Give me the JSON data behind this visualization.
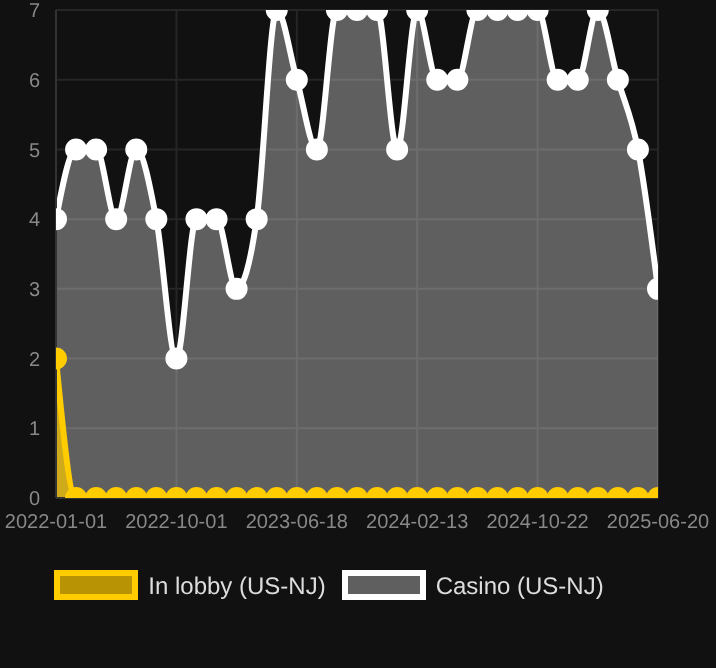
{
  "chart_data": {
    "type": "area",
    "categories": [
      "2022-01-01",
      null,
      null,
      null,
      null,
      null,
      "2022-10-01",
      null,
      null,
      null,
      null,
      null,
      "2023-06-18",
      null,
      null,
      null,
      null,
      null,
      "2024-02-13",
      null,
      null,
      null,
      null,
      null,
      "2024-10-22",
      null,
      null,
      null,
      null,
      null,
      "2025-06-20"
    ],
    "series": [
      {
        "name": "In lobby (US-NJ)",
        "color": "#ffcc00",
        "values": [
          2,
          0,
          0,
          0,
          0,
          0,
          0,
          0,
          0,
          0,
          0,
          0,
          0,
          0,
          0,
          0,
          0,
          0,
          0,
          0,
          0,
          0,
          0,
          0,
          0,
          0,
          0,
          0,
          0,
          0,
          0
        ]
      },
      {
        "name": "Casino (US-NJ)",
        "color": "#ffffff",
        "values": [
          4,
          5,
          5,
          4,
          5,
          4,
          2,
          4,
          4,
          3,
          4,
          7,
          6,
          5,
          7,
          7,
          7,
          5,
          7,
          6,
          6,
          7,
          7,
          7,
          7,
          6,
          6,
          7,
          6,
          5,
          3
        ]
      }
    ],
    "ylim": [
      0,
      7
    ],
    "yticks": [
      0,
      1,
      2,
      3,
      4,
      5,
      6,
      7
    ],
    "grid": true,
    "legend": "bottom",
    "marker": "circle"
  }
}
